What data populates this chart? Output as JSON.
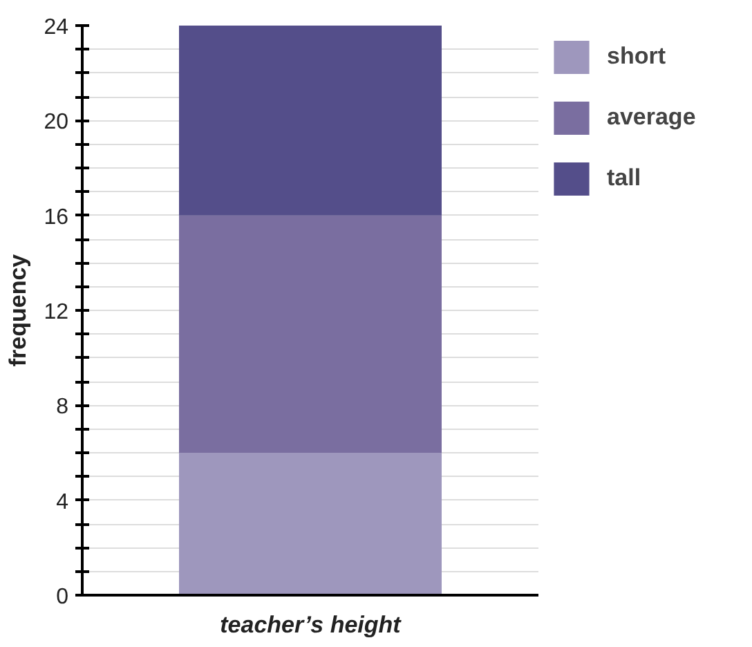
{
  "chart_data": {
    "type": "bar",
    "stacked": true,
    "xlabel": "teacher’s height",
    "ylabel": "frequency",
    "categories": [
      null
    ],
    "series": [
      {
        "name": "short",
        "color": "#9e97bd",
        "values": [
          6
        ]
      },
      {
        "name": "average",
        "color": "#7a6ea0",
        "values": [
          10
        ]
      },
      {
        "name": "tall",
        "color": "#544e8a",
        "values": [
          8
        ]
      }
    ],
    "ylim": [
      0,
      24
    ],
    "yticks": [
      0,
      {
        "value": 1,
        "label": null
      },
      {
        "value": 2,
        "label": null
      },
      {
        "value": 3,
        "label": null
      },
      4,
      {
        "value": 5,
        "label": null
      },
      {
        "value": 6,
        "label": null
      },
      {
        "value": 7,
        "label": null
      },
      8,
      {
        "value": 9,
        "label": null
      },
      {
        "value": 10,
        "label": null
      },
      {
        "value": 11,
        "label": null
      },
      12,
      {
        "value": 13,
        "label": null
      },
      {
        "value": 14,
        "label": null
      },
      {
        "value": 15,
        "label": null
      },
      16,
      {
        "value": 17,
        "label": null
      },
      {
        "value": 18,
        "label": null
      },
      {
        "value": 19,
        "label": null
      },
      20,
      {
        "value": 21,
        "label": null
      },
      {
        "value": 22,
        "label": null
      },
      {
        "value": 23,
        "label": null
      },
      24
    ],
    "grid": "y",
    "legend": "top right"
  }
}
